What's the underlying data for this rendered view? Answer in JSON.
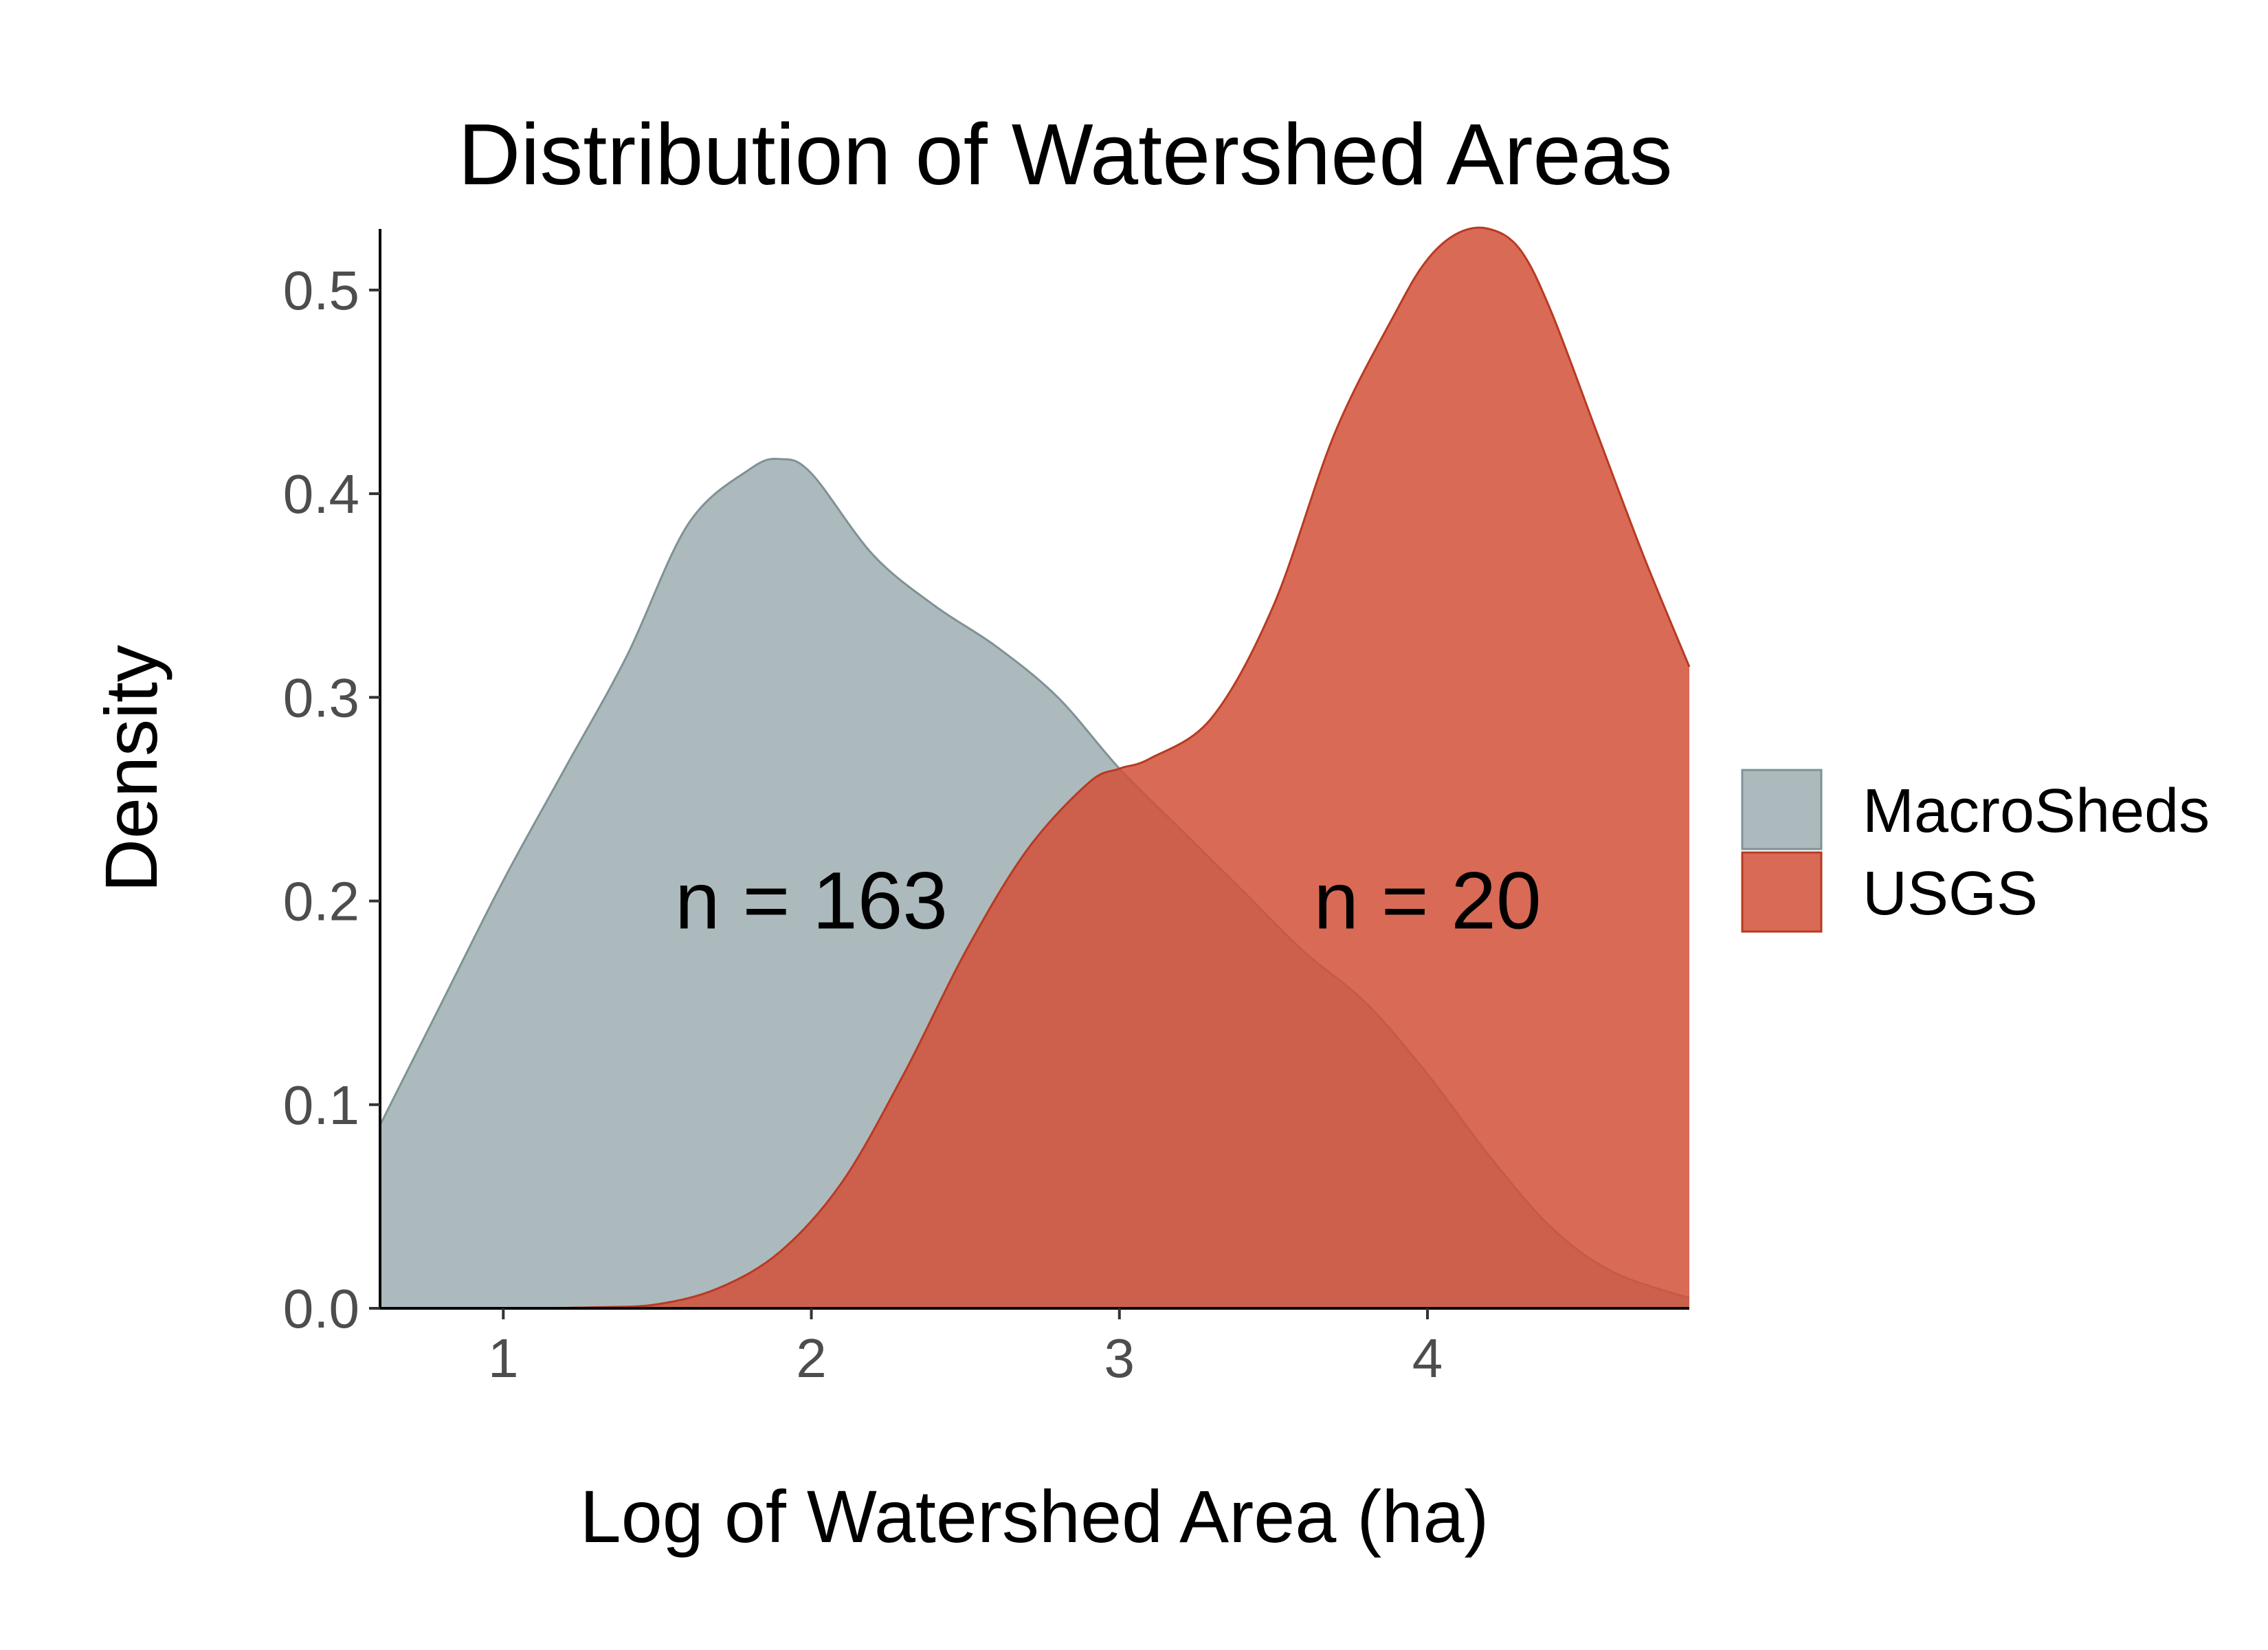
{
  "chart_data": {
    "type": "area",
    "title": "Distribution of Watershed Areas",
    "xlabel": "Log of Watershed Area (ha)",
    "ylabel": "Density",
    "xlim": [
      0.6,
      4.85
    ],
    "ylim": [
      0,
      0.53
    ],
    "x_ticks": [
      1,
      2,
      3,
      4
    ],
    "x_tick_labels": [
      "1",
      "2",
      "3",
      "4"
    ],
    "y_ticks": [
      0.0,
      0.1,
      0.2,
      0.3,
      0.4,
      0.5
    ],
    "y_tick_labels": [
      "0.0",
      "0.1",
      "0.2",
      "0.3",
      "0.4",
      "0.5"
    ],
    "grid": false,
    "legend_position": "right",
    "series": [
      {
        "name": "MacroSheds",
        "fill": "#9eaeb2",
        "stroke": "#7f9296",
        "x": [
          0.6,
          0.8,
          1.0,
          1.2,
          1.4,
          1.6,
          1.8,
          1.9,
          2.0,
          2.2,
          2.4,
          2.6,
          2.8,
          3.0,
          3.2,
          3.4,
          3.6,
          3.8,
          4.0,
          4.2,
          4.4,
          4.6,
          4.85
        ],
        "values": [
          0.09,
          0.15,
          0.21,
          0.265,
          0.32,
          0.385,
          0.412,
          0.417,
          0.41,
          0.37,
          0.345,
          0.325,
          0.3,
          0.265,
          0.235,
          0.205,
          0.175,
          0.15,
          0.115,
          0.075,
          0.04,
          0.018,
          0.005
        ]
      },
      {
        "name": "USGS",
        "fill": "#d25038",
        "stroke": "#b83a22",
        "x": [
          0.6,
          1.0,
          1.3,
          1.5,
          1.7,
          1.9,
          2.1,
          2.3,
          2.5,
          2.7,
          2.9,
          3.0,
          3.1,
          3.3,
          3.5,
          3.7,
          3.9,
          4.0,
          4.1,
          4.2,
          4.3,
          4.4,
          4.55,
          4.7,
          4.85
        ],
        "values": [
          0.0,
          0.0,
          0.0005,
          0.002,
          0.01,
          0.028,
          0.062,
          0.115,
          0.175,
          0.225,
          0.258,
          0.265,
          0.27,
          0.29,
          0.345,
          0.43,
          0.49,
          0.515,
          0.528,
          0.53,
          0.52,
          0.49,
          0.43,
          0.37,
          0.315
        ]
      }
    ],
    "annotations": [
      {
        "text": "n = 163",
        "x": 2.0,
        "y": 0.2
      },
      {
        "text": "n = 20",
        "x": 4.0,
        "y": 0.2
      }
    ]
  }
}
